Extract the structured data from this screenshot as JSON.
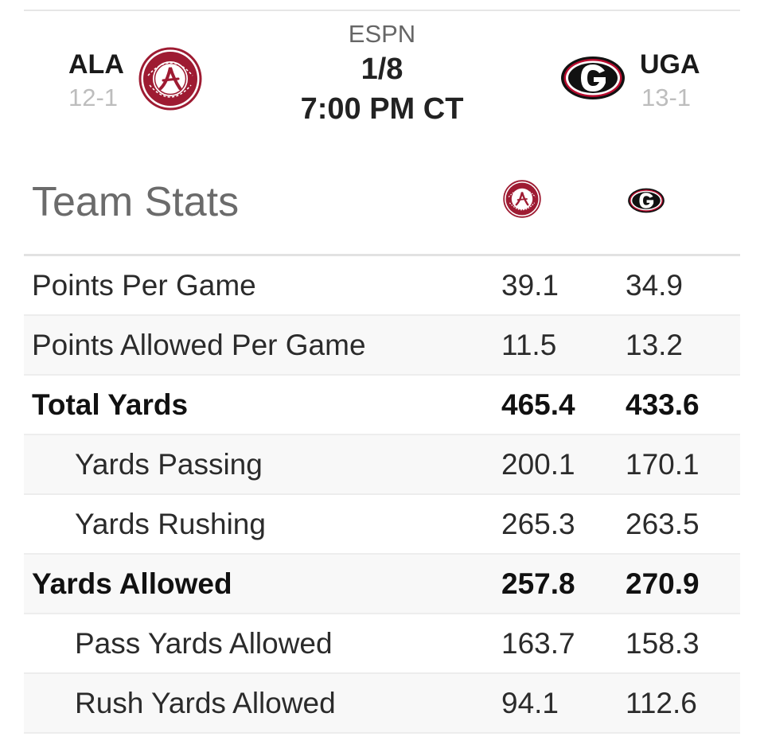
{
  "game": {
    "network": "ESPN",
    "date": "1/8",
    "time": "7:00 PM CT"
  },
  "teams": {
    "home": {
      "abbr": "ALA",
      "record": "12-1",
      "logo_icon": "alabama-crimson-tide-logo-icon",
      "color": "#9e1b32"
    },
    "away": {
      "abbr": "UGA",
      "record": "13-1",
      "logo_icon": "georgia-g-logo-icon",
      "color": "#ba0c2f"
    }
  },
  "stats": {
    "title": "Team Stats",
    "rows": [
      {
        "label": "Points Per Game",
        "ala": "39.1",
        "uga": "34.9"
      },
      {
        "label": "Points Allowed Per Game",
        "ala": "11.5",
        "uga": "13.2"
      },
      {
        "label": "Total Yards",
        "ala": "465.4",
        "uga": "433.6"
      },
      {
        "label": "Yards Passing",
        "ala": "200.1",
        "uga": "170.1"
      },
      {
        "label": "Yards Rushing",
        "ala": "265.3",
        "uga": "263.5"
      },
      {
        "label": "Yards Allowed",
        "ala": "257.8",
        "uga": "270.9"
      },
      {
        "label": "Pass Yards Allowed",
        "ala": "163.7",
        "uga": "158.3"
      },
      {
        "label": "Rush Yards Allowed",
        "ala": "94.1",
        "uga": "112.6"
      }
    ]
  }
}
